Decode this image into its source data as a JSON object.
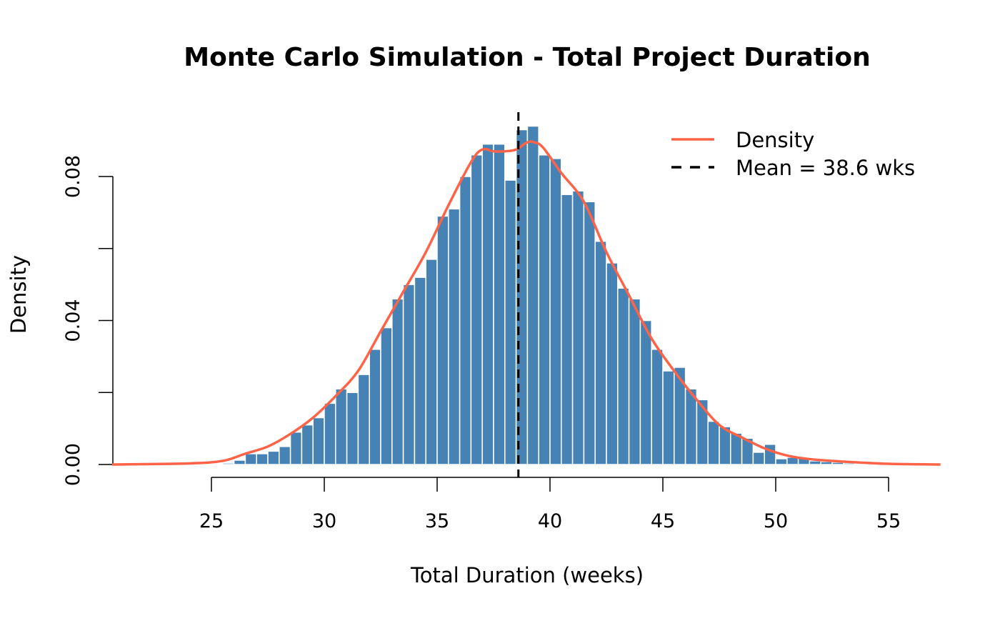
{
  "chart_data": {
    "type": "bar",
    "title": "Monte Carlo Simulation - Total Project Duration",
    "xlabel": "Total Duration (weeks)",
    "ylabel": "Density",
    "xlim": [
      20.6,
      57.3
    ],
    "ylim": [
      0,
      0.1
    ],
    "x_ticks": [
      25,
      30,
      35,
      40,
      45,
      50,
      55
    ],
    "x_tick_labels": [
      "25",
      "30",
      "35",
      "40",
      "45",
      "50",
      "55"
    ],
    "y_ticks": [
      0,
      0.02,
      0.04,
      0.06,
      0.08
    ],
    "y_tick_labels": [
      "0.00",
      "",
      "0.04",
      "",
      "0.08"
    ],
    "bin_start": 25.5,
    "bin_width": 0.5,
    "values": [
      0.0004,
      0.0012,
      0.003,
      0.003,
      0.0037,
      0.005,
      0.009,
      0.011,
      0.013,
      0.017,
      0.021,
      0.02,
      0.025,
      0.032,
      0.038,
      0.046,
      0.05,
      0.052,
      0.057,
      0.069,
      0.071,
      0.08,
      0.086,
      0.089,
      0.089,
      0.079,
      0.093,
      0.094,
      0.086,
      0.085,
      0.075,
      0.076,
      0.073,
      0.062,
      0.056,
      0.049,
      0.046,
      0.04,
      0.032,
      0.026,
      0.027,
      0.021,
      0.018,
      0.012,
      0.0105,
      0.0087,
      0.0073,
      0.0034,
      0.0056,
      0.0016,
      0.002,
      0.002,
      0.001,
      0.0008,
      0.0006,
      0.0004,
      0.0002
    ],
    "density_curve": {
      "x": [
        20.6,
        24,
        25.5,
        26.5,
        27.5,
        28.5,
        29.5,
        30.5,
        31.5,
        32.5,
        33.5,
        34.5,
        35.5,
        36.5,
        37.0,
        37.5,
        38.0,
        38.5,
        39.0,
        39.3,
        39.7,
        40.5,
        41.5,
        42.5,
        43.5,
        44.5,
        45.5,
        46.5,
        47.5,
        48.5,
        49.5,
        50.5,
        51.5,
        53,
        55,
        57.3
      ],
      "y": [
        0,
        0.0003,
        0.001,
        0.003,
        0.005,
        0.0085,
        0.013,
        0.019,
        0.026,
        0.037,
        0.048,
        0.059,
        0.072,
        0.084,
        0.0875,
        0.087,
        0.087,
        0.0875,
        0.0895,
        0.0895,
        0.088,
        0.081,
        0.073,
        0.059,
        0.047,
        0.035,
        0.026,
        0.018,
        0.011,
        0.0075,
        0.0045,
        0.0025,
        0.0015,
        0.0008,
        0.0002,
        0
      ]
    },
    "mean": 38.6,
    "legend": {
      "position": "top-right",
      "entries": [
        "Density",
        "Mean = 38.6 wks"
      ]
    },
    "colors": {
      "bars": "#4682B4",
      "bar_border": "#ffffff",
      "density": "#FF6347",
      "mean": "#000000"
    }
  }
}
